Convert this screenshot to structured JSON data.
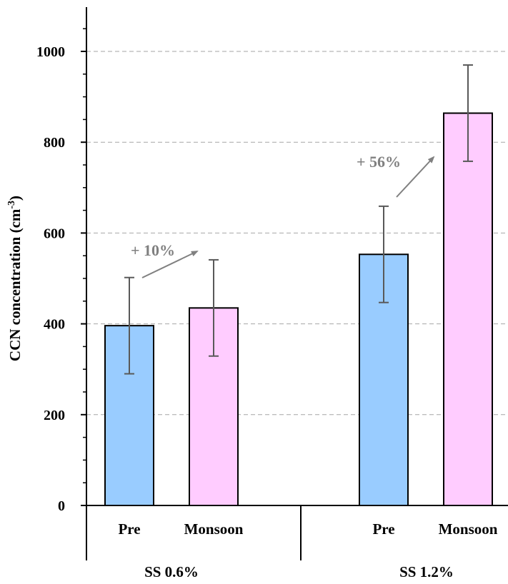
{
  "chart_data": {
    "type": "bar",
    "ylabel": "CCN concentration (cm",
    "ylabel_sup": "-3",
    "ylabel_close": ")",
    "ylim": [
      0,
      1100
    ],
    "yticks": [
      "0",
      "200",
      "400",
      "600",
      "800",
      "1000"
    ],
    "grid": "dashed horizontal",
    "groups": [
      {
        "label": "SS  0.6%",
        "bars": [
          {
            "category": "Pre",
            "value": 396,
            "error": 106,
            "color": "#99ccff"
          },
          {
            "category": "Monsoon",
            "value": 435,
            "error": 106,
            "color": "#ffccff"
          }
        ],
        "annotation": "+ 10%"
      },
      {
        "label": "SS  1.2%",
        "bars": [
          {
            "category": "Pre",
            "value": 553,
            "error": 106,
            "color": "#99ccff"
          },
          {
            "category": "Monsoon",
            "value": 864,
            "error": 106,
            "color": "#ffccff"
          }
        ],
        "annotation": "+ 56%"
      }
    ],
    "colors": {
      "axis": "#000000",
      "grid": "#a6a6a6",
      "errorbar": "#595959",
      "annotation": "#808080"
    }
  }
}
